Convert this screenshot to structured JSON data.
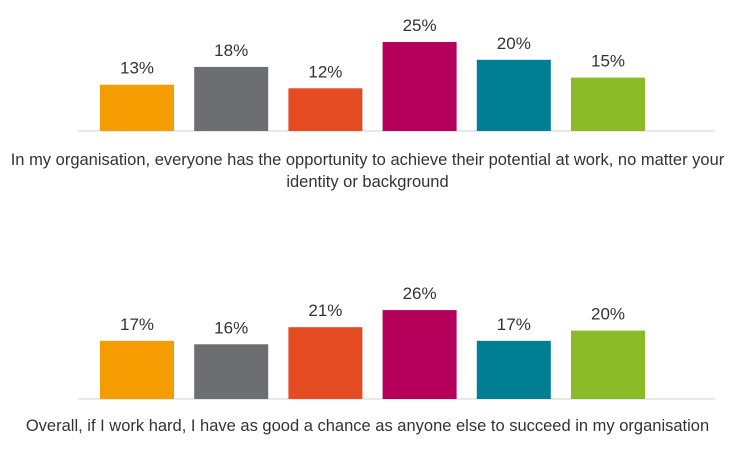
{
  "chart_data": [
    {
      "type": "bar",
      "xlabel": "In my organisation, everyone has the opportunity to achieve their potential at work, no matter your identity or background",
      "categories": [
        null,
        null,
        null,
        null,
        null,
        null
      ],
      "values": [
        13,
        18,
        12,
        25,
        20,
        15
      ],
      "value_labels": [
        "13%",
        "18%",
        "12%",
        "25%",
        "20%",
        "15%"
      ],
      "colors": [
        "#f59c00",
        "#6d6e71",
        "#e54b22",
        "#b5005b",
        "#007e93",
        "#8bbb26"
      ]
    },
    {
      "type": "bar",
      "xlabel": "Overall, if I work hard, I have as good a chance as anyone else to succeed in my organisation",
      "categories": [
        null,
        null,
        null,
        null,
        null,
        null
      ],
      "values": [
        17,
        16,
        21,
        26,
        17,
        20
      ],
      "value_labels": [
        "17%",
        "16%",
        "21%",
        "26%",
        "17%",
        "20%"
      ],
      "colors": [
        "#f59c00",
        "#6d6e71",
        "#e54b22",
        "#b5005b",
        "#007e93",
        "#8bbb26"
      ]
    }
  ]
}
